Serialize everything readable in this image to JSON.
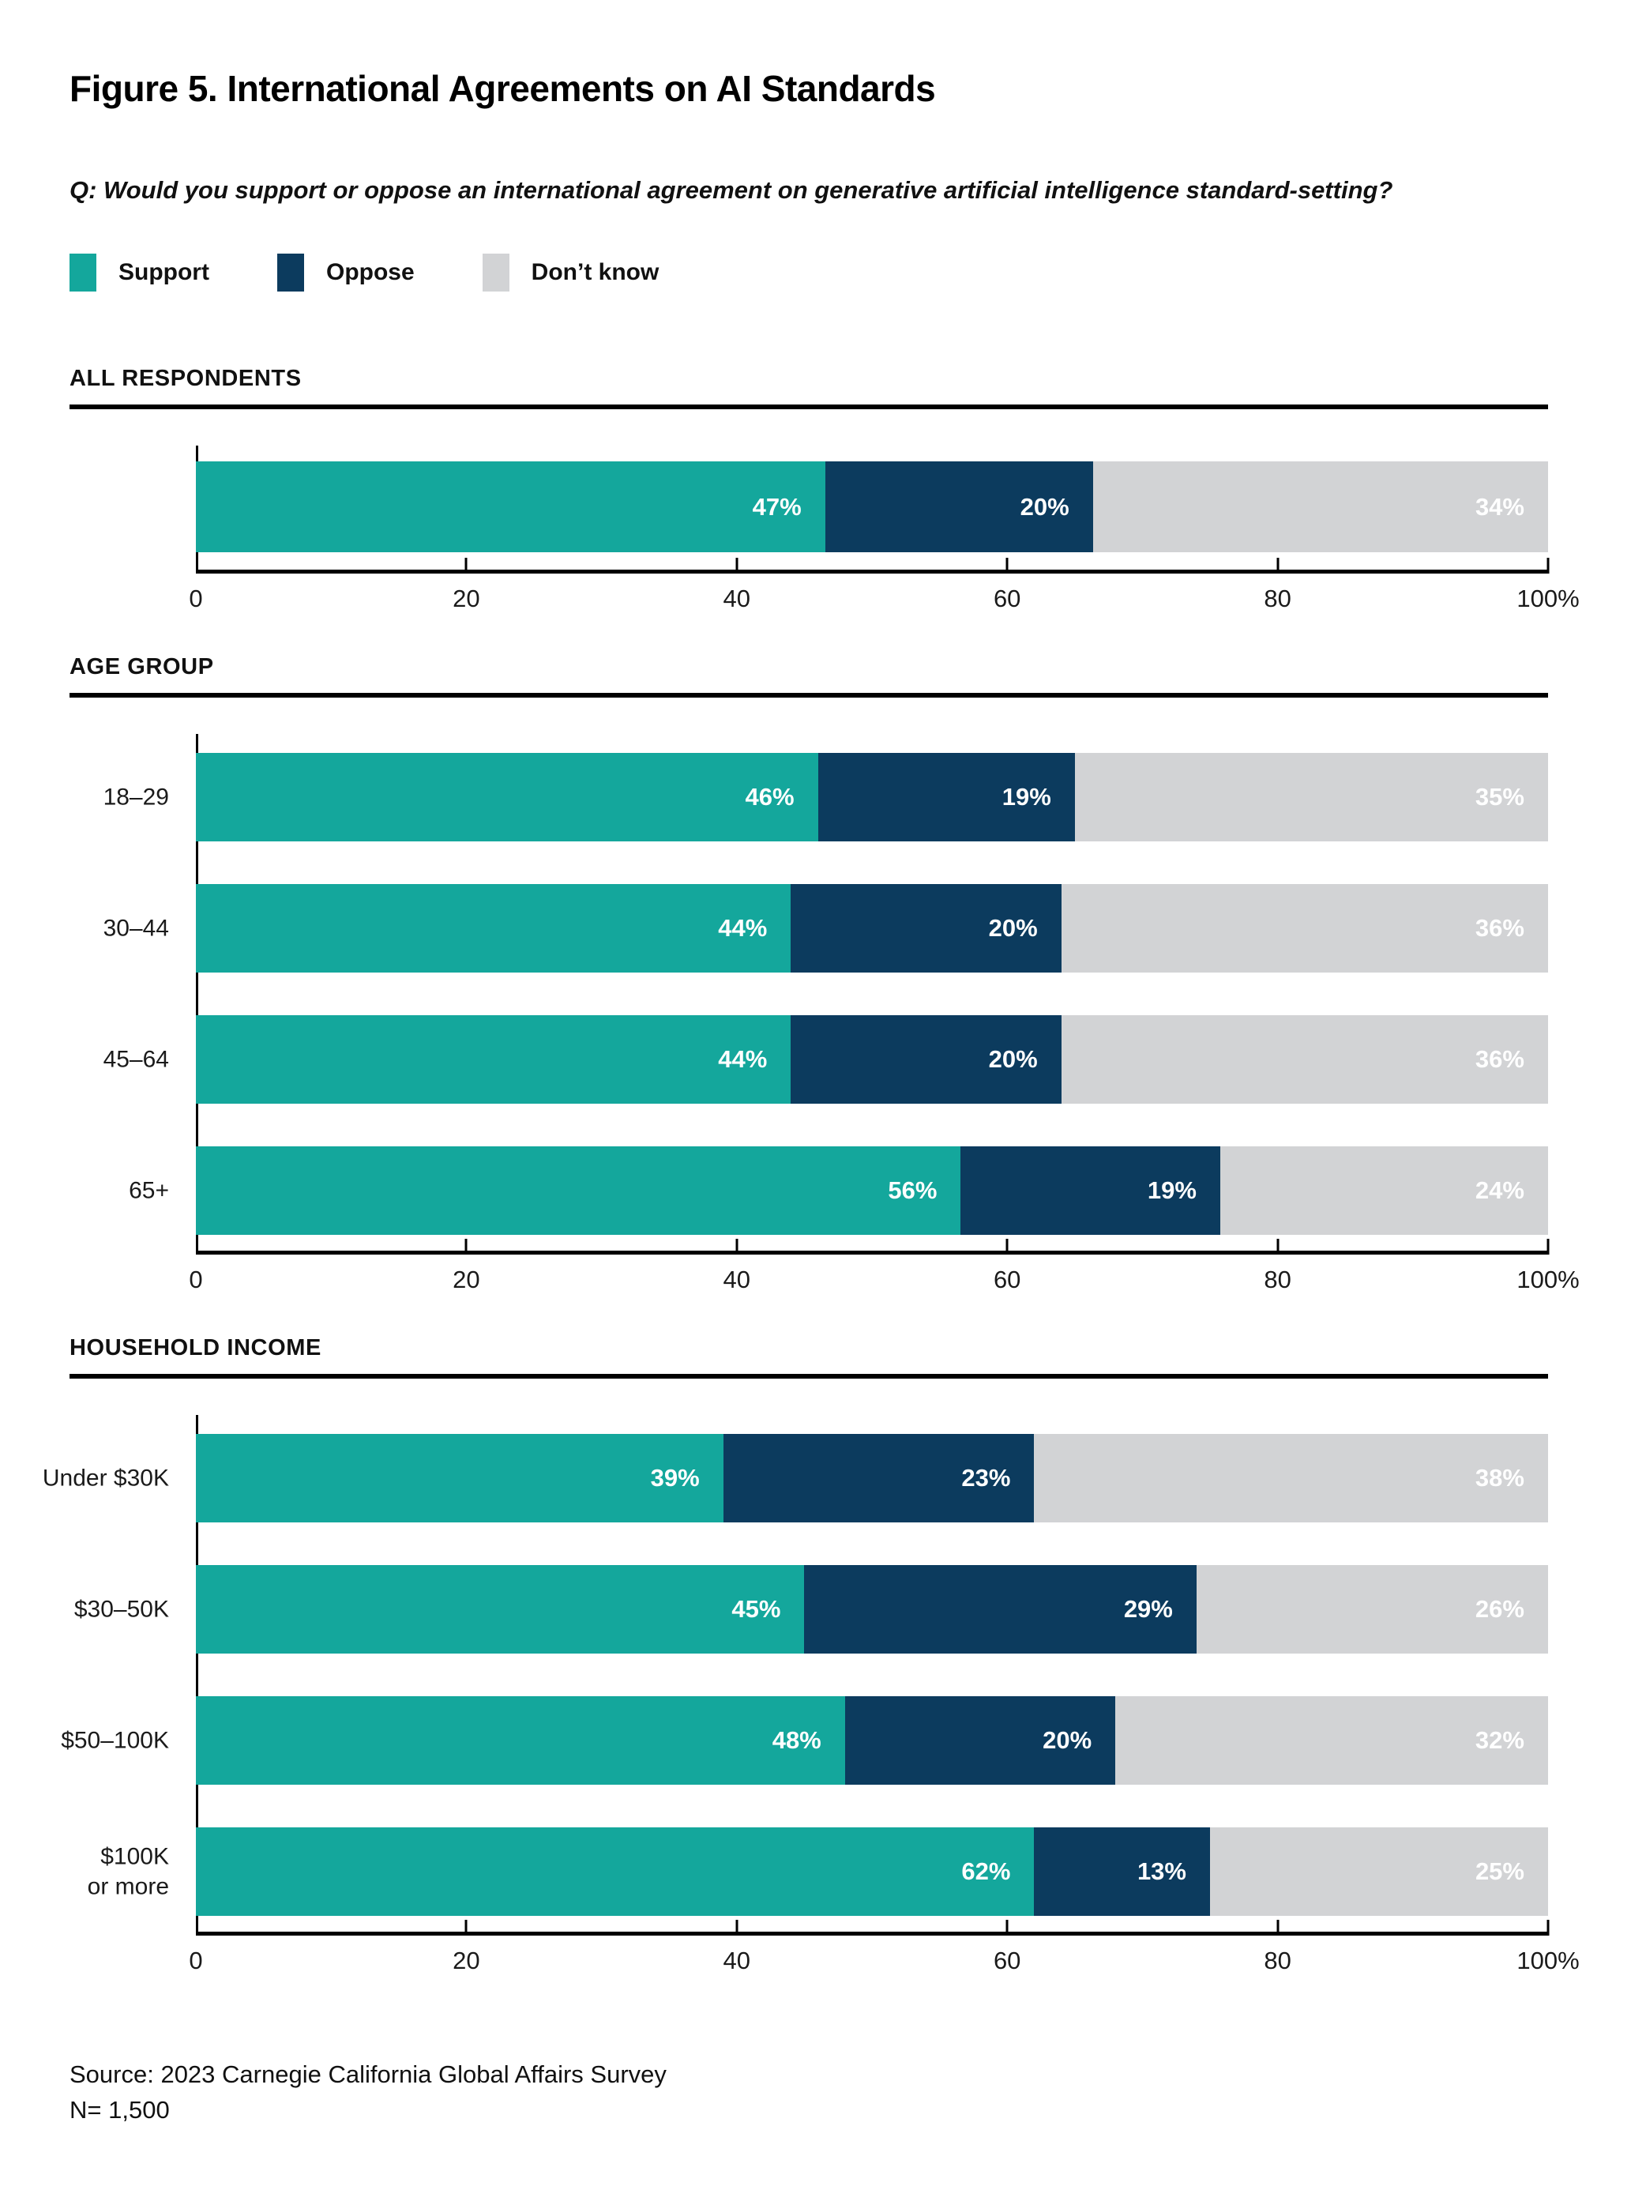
{
  "title": "Figure 5. International Agreements on AI Standards",
  "question": "Q: Would you support or oppose an international agreement on generative artificial intelligence standard-setting?",
  "legend": [
    {
      "key": "support",
      "label": "Support",
      "color": "#14a79c"
    },
    {
      "key": "oppose",
      "label": "Oppose",
      "color": "#0c3b5e"
    },
    {
      "key": "dont-know",
      "label": "Don’t know",
      "color": "#d2d3d5"
    }
  ],
  "axis": {
    "tick_labels": [
      "0",
      "20",
      "40",
      "60",
      "80",
      "100%"
    ],
    "min": 0,
    "max": 100
  },
  "chart_data": [
    {
      "type": "bar",
      "title": "ALL RESPONDENTS",
      "orientation": "horizontal",
      "stacked": true,
      "categories": [
        ""
      ],
      "series": [
        {
          "name": "Support",
          "values": [
            47
          ]
        },
        {
          "name": "Oppose",
          "values": [
            20
          ]
        },
        {
          "name": "Don’t know",
          "values": [
            34
          ]
        }
      ],
      "xlim": [
        0,
        100
      ],
      "x_ticks": [
        "0",
        "20",
        "40",
        "60",
        "80",
        "100%"
      ],
      "value_label_format": "{v}%"
    },
    {
      "type": "bar",
      "title": "AGE GROUP",
      "orientation": "horizontal",
      "stacked": true,
      "categories": [
        "18–29",
        "30–44",
        "45–64",
        "65+"
      ],
      "series": [
        {
          "name": "Support",
          "values": [
            46,
            44,
            44,
            56
          ]
        },
        {
          "name": "Oppose",
          "values": [
            19,
            20,
            20,
            19
          ]
        },
        {
          "name": "Don’t know",
          "values": [
            35,
            36,
            36,
            24
          ]
        }
      ],
      "xlim": [
        0,
        100
      ],
      "x_ticks": [
        "0",
        "20",
        "40",
        "60",
        "80",
        "100%"
      ],
      "value_label_format": "{v}%"
    },
    {
      "type": "bar",
      "title": "HOUSEHOLD INCOME",
      "orientation": "horizontal",
      "stacked": true,
      "categories": [
        "Under $30K",
        "$30–50K",
        "$50–100K",
        "$100K\nor more"
      ],
      "series": [
        {
          "name": "Support",
          "values": [
            39,
            45,
            48,
            62
          ]
        },
        {
          "name": "Oppose",
          "values": [
            23,
            29,
            20,
            13
          ]
        },
        {
          "name": "Don’t know",
          "values": [
            38,
            26,
            32,
            25
          ]
        }
      ],
      "xlim": [
        0,
        100
      ],
      "x_ticks": [
        "0",
        "20",
        "40",
        "60",
        "80",
        "100%"
      ],
      "value_label_format": "{v}%"
    }
  ],
  "source": {
    "line1": "Source: 2023 Carnegie California Global Affairs Survey",
    "line2": "N= 1,500"
  }
}
